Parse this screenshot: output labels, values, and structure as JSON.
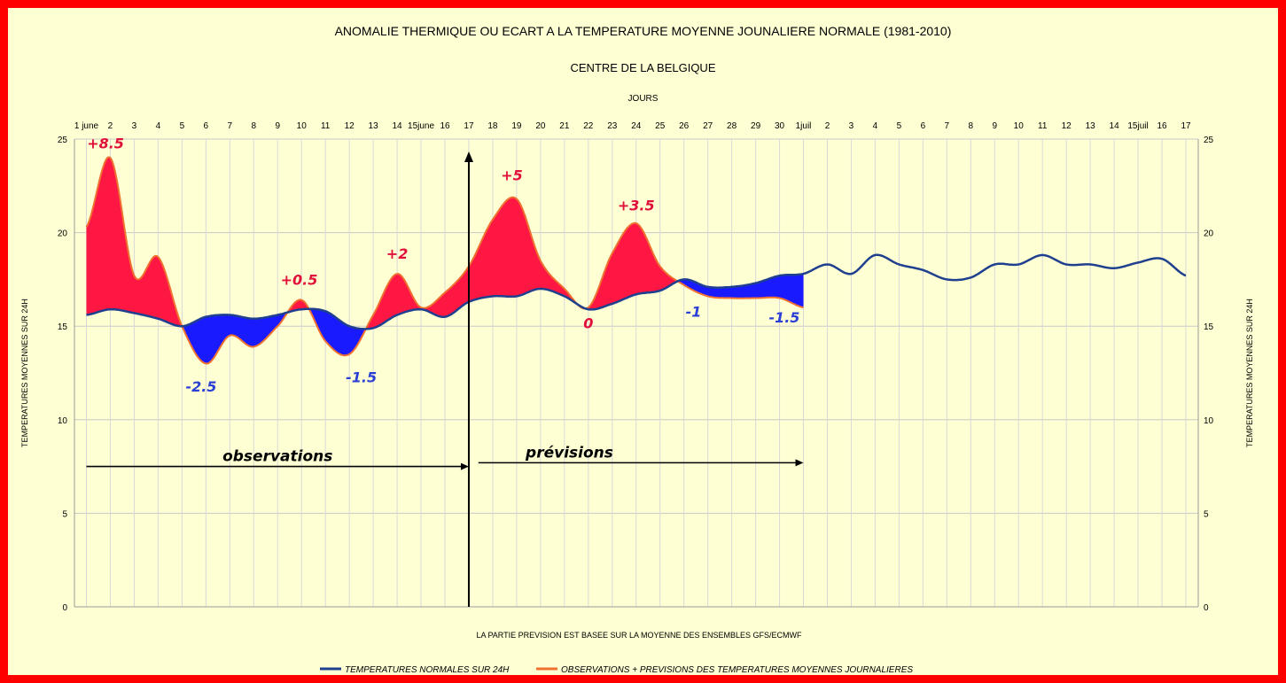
{
  "colors": {
    "frame": "#ff0000",
    "background": "#ffffd4",
    "normal_line": "#1f3f8f",
    "observed_line": "#f07030",
    "fill_above": "#ff1744",
    "fill_below": "#1a1aff",
    "label_above": "#e0103a",
    "label_below": "#2a3fd6"
  },
  "chart_data": {
    "type": "line",
    "title": "ANOMALIE THERMIQUE OU ECART A LA TEMPERATURE MOYENNE JOUNALIERE NORMALE (1981-2010)",
    "subtitle": "CENTRE DE LA BELGIQUE",
    "xlabel": "JOURS",
    "ylabel": "TEMPERATURES MOYENNES SUR 24H",
    "ylabel_right": "TEMPERATURES MOYENNES SUR 24H",
    "footnote": "LA PARTIE PREVISION EST BASEE SUR LA MOYENNE DES ENSEMBLES GFS/ECMWF",
    "ylim": [
      0,
      25
    ],
    "yticks": [
      0,
      5,
      10,
      15,
      20,
      25
    ],
    "grid": true,
    "legend_position": "bottom",
    "x_tick_labels": [
      "1 june",
      "2",
      "3",
      "4",
      "5",
      "6",
      "7",
      "8",
      "9",
      "10",
      "11",
      "12",
      "13",
      "14",
      "15june",
      "16",
      "17",
      "18",
      "19",
      "20",
      "21",
      "22",
      "23",
      "24",
      "25",
      "26",
      "27",
      "28",
      "29",
      "30",
      "1juil",
      "2",
      "3",
      "4",
      "5",
      "6",
      "7",
      "8",
      "9",
      "10",
      "11",
      "12",
      "13",
      "14",
      "15juil",
      "16",
      "17"
    ],
    "series": [
      {
        "name": "TEMPERATURES NORMALES SUR 24H",
        "color": "#1f3f8f",
        "x": [
          0,
          1,
          2,
          3,
          4,
          5,
          6,
          7,
          8,
          9,
          10,
          11,
          12,
          13,
          14,
          15,
          16,
          17,
          18,
          19,
          20,
          21,
          22,
          23,
          24,
          25,
          26,
          27,
          28,
          29,
          30,
          31,
          32,
          33,
          34,
          35,
          36,
          37,
          38,
          39,
          40,
          41,
          42,
          43,
          44,
          45,
          46
        ],
        "values": [
          15.6,
          15.9,
          15.7,
          15.4,
          15.0,
          15.5,
          15.6,
          15.4,
          15.6,
          15.9,
          15.8,
          15.0,
          14.9,
          15.6,
          15.9,
          15.5,
          16.3,
          16.6,
          16.6,
          17.0,
          16.6,
          15.9,
          16.2,
          16.7,
          16.9,
          17.5,
          17.1,
          17.1,
          17.3,
          17.7,
          17.8,
          18.3,
          17.8,
          18.8,
          18.3,
          18.0,
          17.5,
          17.6,
          18.3,
          18.3,
          18.8,
          18.3,
          18.3,
          18.1,
          18.4,
          18.6,
          17.7
        ]
      },
      {
        "name": "OBSERVATIONS + PREVISIONS DES TEMPERATURES MOYENNES JOURNALIERES",
        "color": "#f07030",
        "x": [
          0,
          1,
          2,
          3,
          4,
          5,
          6,
          7,
          8,
          9,
          10,
          11,
          12,
          13,
          14,
          15,
          16,
          17,
          18,
          19,
          20,
          21,
          22,
          23,
          24,
          25,
          26,
          27,
          28,
          29,
          30
        ],
        "values": [
          20.3,
          24.0,
          17.7,
          18.7,
          15.0,
          13.0,
          14.5,
          13.9,
          15.0,
          16.4,
          14.2,
          13.5,
          15.6,
          17.8,
          16.0,
          16.8,
          18.2,
          20.7,
          21.8,
          18.5,
          17.0,
          16.0,
          18.9,
          20.5,
          18.2,
          17.2,
          16.6,
          16.5,
          16.5,
          16.5,
          16.0
        ]
      }
    ],
    "annotations": [
      {
        "text": "+8.5",
        "x": 0.8,
        "y": 24.5,
        "sign": "above"
      },
      {
        "text": "-2.5",
        "x": 4.8,
        "y": 11.5,
        "sign": "below"
      },
      {
        "text": "+0.5",
        "x": 8.9,
        "y": 17.2,
        "sign": "above"
      },
      {
        "text": "-1.5",
        "x": 11.5,
        "y": 12.0,
        "sign": "below"
      },
      {
        "text": "+2",
        "x": 13.0,
        "y": 18.6,
        "sign": "above"
      },
      {
        "text": "+5",
        "x": 17.8,
        "y": 22.8,
        "sign": "above"
      },
      {
        "text": "0",
        "x": 21.0,
        "y": 14.9,
        "sign": "above"
      },
      {
        "text": "+3.5",
        "x": 23.0,
        "y": 21.2,
        "sign": "above"
      },
      {
        "text": "-1",
        "x": 25.4,
        "y": 15.5,
        "sign": "below"
      },
      {
        "text": "-1.5",
        "x": 29.2,
        "y": 15.2,
        "sign": "below"
      }
    ],
    "forecast_start_x": 16,
    "periods": [
      {
        "label": "observations",
        "x_start": 0,
        "x_end": 16,
        "y": 7.5
      },
      {
        "label": "prévisions",
        "x_start": 16.4,
        "x_end": 30,
        "y": 7.7
      }
    ]
  }
}
